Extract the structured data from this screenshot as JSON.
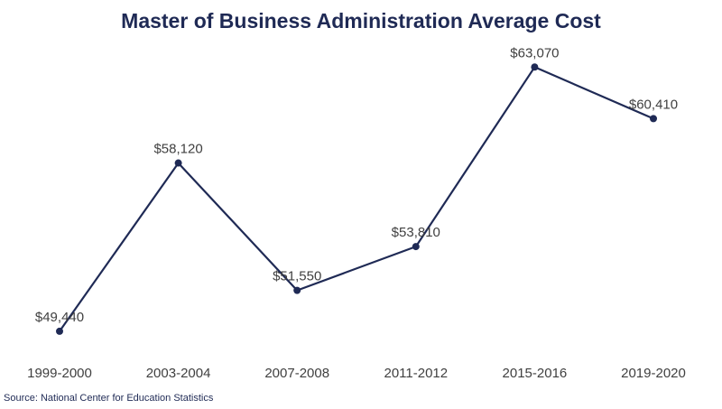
{
  "chart_data": {
    "type": "line",
    "title": "Master of Business Administration Average Cost",
    "xlabel": "",
    "ylabel": "",
    "categories": [
      "1999-2000",
      "2003-2004",
      "2007-2008",
      "2011-2012",
      "2015-2016",
      "2019-2020"
    ],
    "series": [
      {
        "values": [
          49440,
          58120,
          51550,
          53810,
          63070,
          60410
        ],
        "data_labels": [
          "$49,440",
          "$58,120",
          "$51,550",
          "$53,810",
          "$63,070",
          "$60,410"
        ]
      }
    ],
    "ylim": [
      47900,
      64200
    ],
    "grid": false,
    "line_color": "#1f2a55",
    "label_color": "#404040"
  },
  "source": "Source: National Center for Education Statistics"
}
